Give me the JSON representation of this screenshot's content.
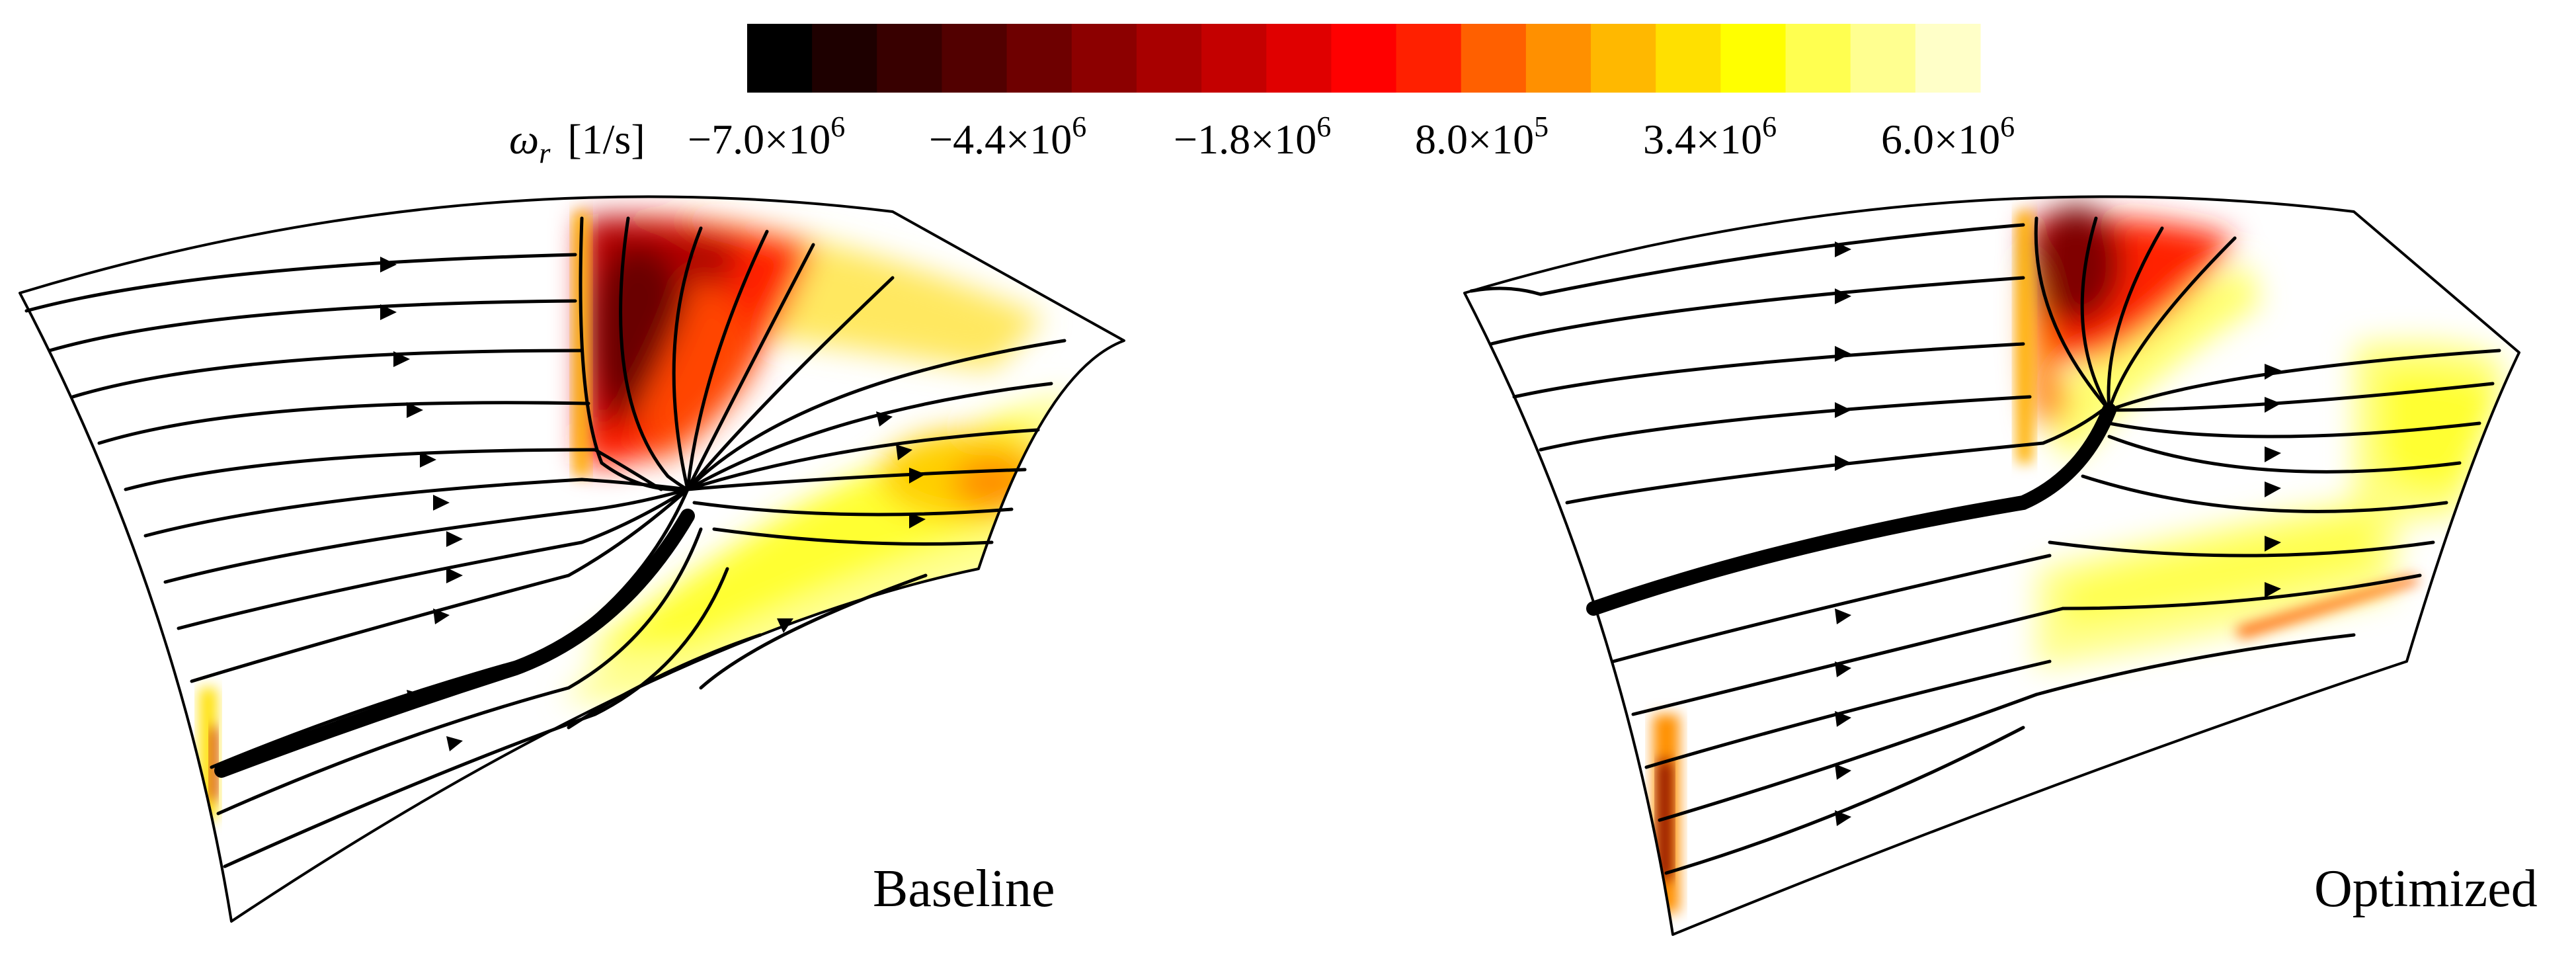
{
  "colorbar": {
    "symbol": "ω",
    "subscript": "r",
    "unit": "[1/s]",
    "ticks": [
      {
        "mantissa": "−7.0",
        "exponent": "6"
      },
      {
        "mantissa": "−4.4",
        "exponent": "6"
      },
      {
        "mantissa": "−1.8",
        "exponent": "6"
      },
      {
        "mantissa": "8.0",
        "exponent": "5"
      },
      {
        "mantissa": "3.4",
        "exponent": "6"
      },
      {
        "mantissa": "6.0",
        "exponent": "6"
      }
    ],
    "times": "×10",
    "colors": [
      "#000000",
      "#1e0000",
      "#380000",
      "#520000",
      "#6e0000",
      "#8c0000",
      "#a80000",
      "#c40000",
      "#e00000",
      "#ff0000",
      "#ff2000",
      "#ff6000",
      "#ff9000",
      "#ffb800",
      "#ffe000",
      "#ffff00",
      "#ffff50",
      "#ffff90",
      "#ffffc8"
    ]
  },
  "panels": [
    {
      "caption": "Baseline"
    },
    {
      "caption": "Optimized"
    }
  ]
}
